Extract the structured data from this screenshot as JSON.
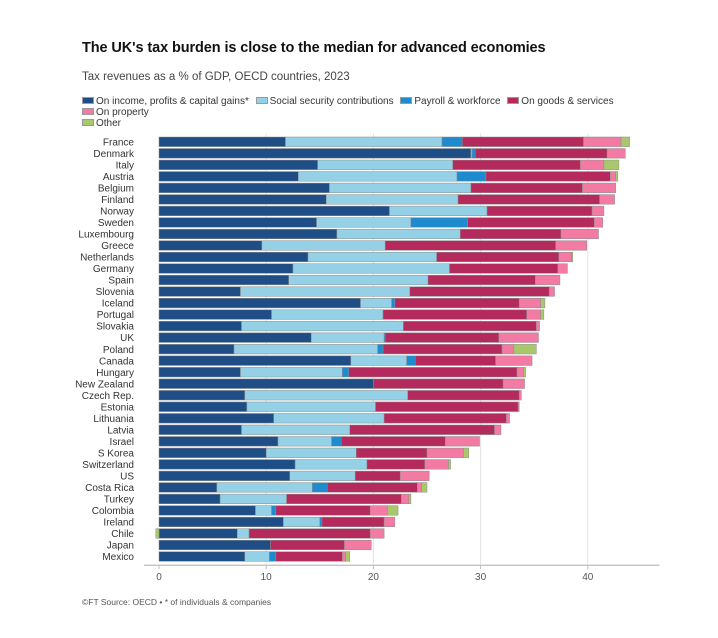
{
  "chart_data": {
    "type": "bar",
    "orientation": "horizontal",
    "stacked": true,
    "title": "The UK's tax burden is close to the median for advanced economies",
    "subtitle": "Tax revenues as a % of GDP, OECD countries, 2023",
    "xlabel": "",
    "ylabel": "",
    "xlim": [
      0,
      45
    ],
    "xticks": [
      0,
      10,
      20,
      30,
      40
    ],
    "xtick_labels": [
      "0",
      "10",
      "20",
      "30",
      "40"
    ],
    "grid": true,
    "legend_position": "top",
    "series": [
      {
        "name": "On income, profits & capital gains*",
        "color": "#1f4e86"
      },
      {
        "name": "Social security contributions",
        "color": "#94d1e6"
      },
      {
        "name": "Payroll & workforce",
        "color": "#1e8bcf"
      },
      {
        "name": "On goods & services",
        "color": "#b52a5c"
      },
      {
        "name": "On property",
        "color": "#f27aa3"
      },
      {
        "name": "Other",
        "color": "#a8c86b"
      }
    ],
    "categories": [
      "France",
      "Denmark",
      "Italy",
      "Austria",
      "Belgium",
      "Finland",
      "Norway",
      "Sweden",
      "Luxembourg",
      "Greece",
      "Netherlands",
      "Germany",
      "Spain",
      "Slovenia",
      "Iceland",
      "Portugal",
      "Slovakia",
      "UK",
      "Poland",
      "Canada",
      "Hungary",
      "New Zealand",
      "Czech Rep.",
      "Estonia",
      "Lithuania",
      "Latvia",
      "Israel",
      "S Korea",
      "Switzerland",
      "US",
      "Costa Rica",
      "Turkey",
      "Colombia",
      "Ireland",
      "Chile",
      "Japan",
      "Mexico"
    ],
    "values": [
      [
        11.8,
        14.6,
        1.9,
        11.3,
        3.5,
        0.8
      ],
      [
        29.1,
        0.1,
        0.3,
        12.3,
        1.7,
        0.0
      ],
      [
        14.8,
        12.6,
        0.0,
        11.9,
        2.2,
        1.4
      ],
      [
        13.0,
        14.8,
        2.7,
        11.6,
        0.5,
        0.2
      ],
      [
        15.9,
        13.2,
        0.0,
        10.4,
        3.1,
        0.0
      ],
      [
        15.6,
        12.3,
        0.0,
        13.2,
        1.4,
        0.0
      ],
      [
        21.5,
        9.1,
        0.0,
        9.8,
        1.1,
        0.0
      ],
      [
        14.7,
        8.8,
        5.3,
        11.8,
        0.8,
        0.0
      ],
      [
        16.6,
        11.5,
        0.0,
        9.4,
        3.5,
        0.0
      ],
      [
        9.6,
        11.5,
        0.0,
        15.9,
        2.9,
        0.0
      ],
      [
        13.9,
        12.0,
        0.0,
        11.4,
        1.2,
        0.1
      ],
      [
        12.5,
        14.6,
        0.0,
        10.1,
        0.9,
        0.0
      ],
      [
        12.1,
        13.0,
        0.0,
        10.0,
        2.3,
        0.0
      ],
      [
        7.6,
        15.8,
        0.0,
        13.0,
        0.5,
        0.0
      ],
      [
        18.8,
        2.9,
        0.3,
        11.6,
        2.0,
        0.4
      ],
      [
        10.5,
        10.4,
        0.0,
        13.4,
        1.3,
        0.3
      ],
      [
        7.7,
        15.1,
        0.0,
        12.4,
        0.3,
        0.0
      ],
      [
        14.2,
        6.8,
        0.1,
        10.6,
        3.7,
        0.0
      ],
      [
        7.0,
        13.4,
        0.5,
        11.1,
        1.1,
        2.1
      ],
      [
        17.9,
        5.2,
        0.8,
        7.5,
        3.4,
        0.0
      ],
      [
        7.6,
        9.5,
        0.6,
        15.7,
        0.6,
        0.2
      ],
      [
        20.0,
        0.0,
        0.0,
        12.1,
        2.0,
        0.0
      ],
      [
        8.0,
        15.2,
        0.0,
        10.4,
        0.2,
        0.0
      ],
      [
        8.2,
        12.0,
        0.0,
        13.3,
        0.1,
        0.0
      ],
      [
        10.7,
        10.3,
        0.0,
        11.4,
        0.3,
        0.0
      ],
      [
        7.7,
        10.1,
        0.0,
        13.5,
        0.6,
        0.0
      ],
      [
        11.1,
        5.0,
        0.9,
        9.7,
        3.2,
        0.0
      ],
      [
        10.0,
        8.4,
        0.0,
        6.6,
        3.4,
        0.5
      ],
      [
        12.7,
        6.7,
        0.0,
        5.4,
        2.2,
        0.2
      ],
      [
        12.2,
        6.1,
        0.0,
        4.2,
        2.7,
        0.0
      ],
      [
        5.4,
        8.9,
        1.4,
        8.4,
        0.4,
        0.5
      ],
      [
        5.7,
        6.2,
        0.0,
        10.7,
        0.7,
        0.2
      ],
      [
        9.0,
        1.5,
        0.4,
        8.8,
        1.6,
        1.0
      ],
      [
        11.6,
        3.4,
        0.2,
        5.8,
        1.0,
        0.0
      ],
      [
        7.3,
        1.1,
        0.0,
        11.3,
        1.3,
        -0.3
      ],
      [
        10.4,
        0.0,
        0.0,
        6.9,
        2.5,
        0.0
      ],
      [
        8.0,
        2.3,
        0.6,
        6.2,
        0.3,
        0.4
      ]
    ],
    "highlight_category": "UK"
  },
  "footer": {
    "source": "©FT Source: OECD • * of individuals & companies"
  }
}
